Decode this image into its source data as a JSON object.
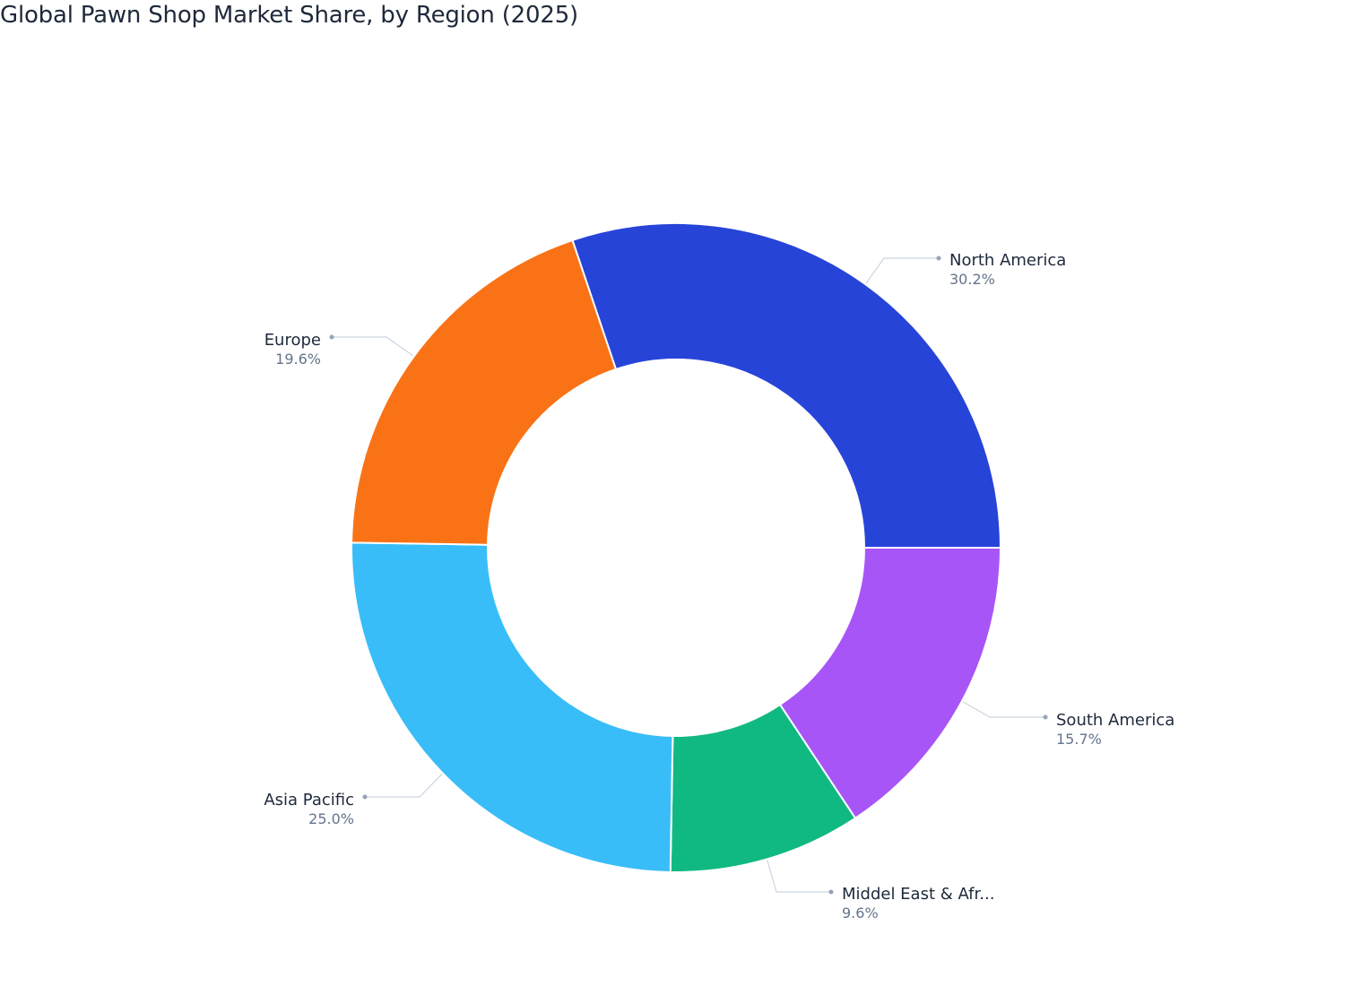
{
  "chart_data": {
    "type": "pie",
    "title": "Global Pawn Shop Market Share, by Region (2025)",
    "hole": true,
    "series": [
      {
        "name": "",
        "labels": [
          "North America",
          "South America",
          "Middel East & Afr...",
          "Asia Pacific",
          "Europe"
        ],
        "values": [
          30.2,
          15.7,
          9.6,
          25.0,
          19.6
        ],
        "value_labels": [
          "30.2%",
          "15.7%",
          "9.6%",
          "25.0%",
          "19.6%"
        ],
        "colors": [
          "#2744d9",
          "#a855f7",
          "#10b981",
          "#38bdf8",
          "#f97316"
        ]
      }
    ]
  }
}
